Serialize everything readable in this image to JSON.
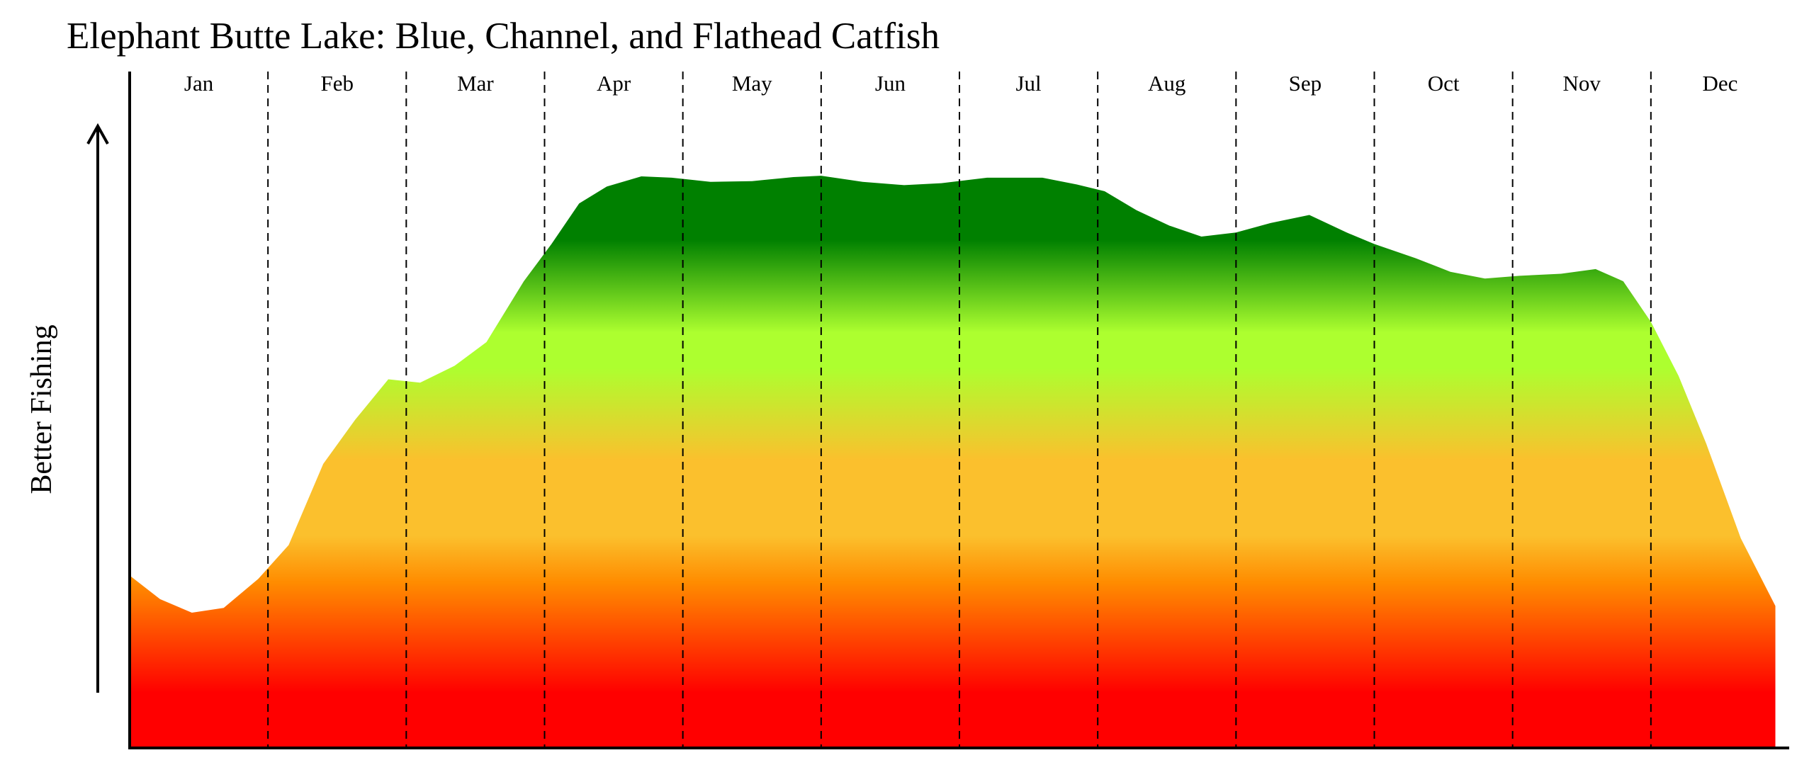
{
  "chart_data": {
    "type": "area",
    "title": "Elephant Butte Lake: Blue, Channel, and Flathead Catfish",
    "xlabel": "",
    "ylabel": "Better Fishing",
    "months": [
      "Jan",
      "Feb",
      "Mar",
      "Apr",
      "May",
      "Jun",
      "Jul",
      "Aug",
      "Sep",
      "Oct",
      "Nov",
      "Dec"
    ],
    "xlim": [
      0,
      12
    ],
    "ylim": [
      0,
      100
    ],
    "grid": "vertical dashed month dividers",
    "gradient_colors": [
      "#ff0000",
      "#ff8c00",
      "#fbc02d",
      "#adff2f",
      "#008000"
    ],
    "x": [
      0,
      0.22,
      0.45,
      0.68,
      0.93,
      1.15,
      1.4,
      1.63,
      1.87,
      2.1,
      2.35,
      2.58,
      2.85,
      3.05,
      3.25,
      3.45,
      3.7,
      3.92,
      4.2,
      4.5,
      4.8,
      5.0,
      5.3,
      5.6,
      5.87,
      6.2,
      6.6,
      6.85,
      7.05,
      7.28,
      7.52,
      7.75,
      8.0,
      8.25,
      8.53,
      8.8,
      9.0,
      9.3,
      9.55,
      9.8,
      10.05,
      10.35,
      10.6,
      10.8,
      11.0,
      11.2,
      11.4,
      11.65,
      11.9
    ],
    "y": [
      25.5,
      22,
      20,
      20.7,
      25,
      30,
      42,
      48.5,
      54.5,
      54,
      56.5,
      60,
      69,
      74.5,
      80.5,
      83,
      84.5,
      84.3,
      83.7,
      83.8,
      84.4,
      84.6,
      83.7,
      83.2,
      83.5,
      84.3,
      84.3,
      83.3,
      82.3,
      79.5,
      77.2,
      75.6,
      76.2,
      77.6,
      78.8,
      76.2,
      74.5,
      72.4,
      70.4,
      69.4,
      69.8,
      70.1,
      70.8,
      69,
      63,
      55,
      45,
      31,
      21
    ]
  }
}
